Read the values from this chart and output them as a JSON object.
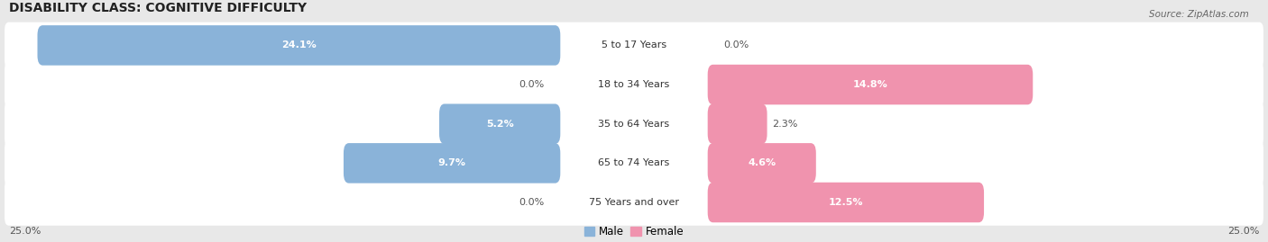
{
  "title": "DISABILITY CLASS: COGNITIVE DIFFICULTY",
  "source": "Source: ZipAtlas.com",
  "categories": [
    "5 to 17 Years",
    "18 to 34 Years",
    "35 to 64 Years",
    "65 to 74 Years",
    "75 Years and over"
  ],
  "male_values": [
    24.1,
    0.0,
    5.2,
    9.7,
    0.0
  ],
  "female_values": [
    0.0,
    14.8,
    2.3,
    4.6,
    12.5
  ],
  "max_value": 25.0,
  "male_color": "#8ab3d9",
  "female_color": "#f093ae",
  "bg_color": "#e8e8e8",
  "row_bg_color": "#ffffff",
  "title_fontsize": 10,
  "label_fontsize": 8,
  "tick_fontsize": 8,
  "legend_fontsize": 8.5,
  "source_fontsize": 7.5
}
